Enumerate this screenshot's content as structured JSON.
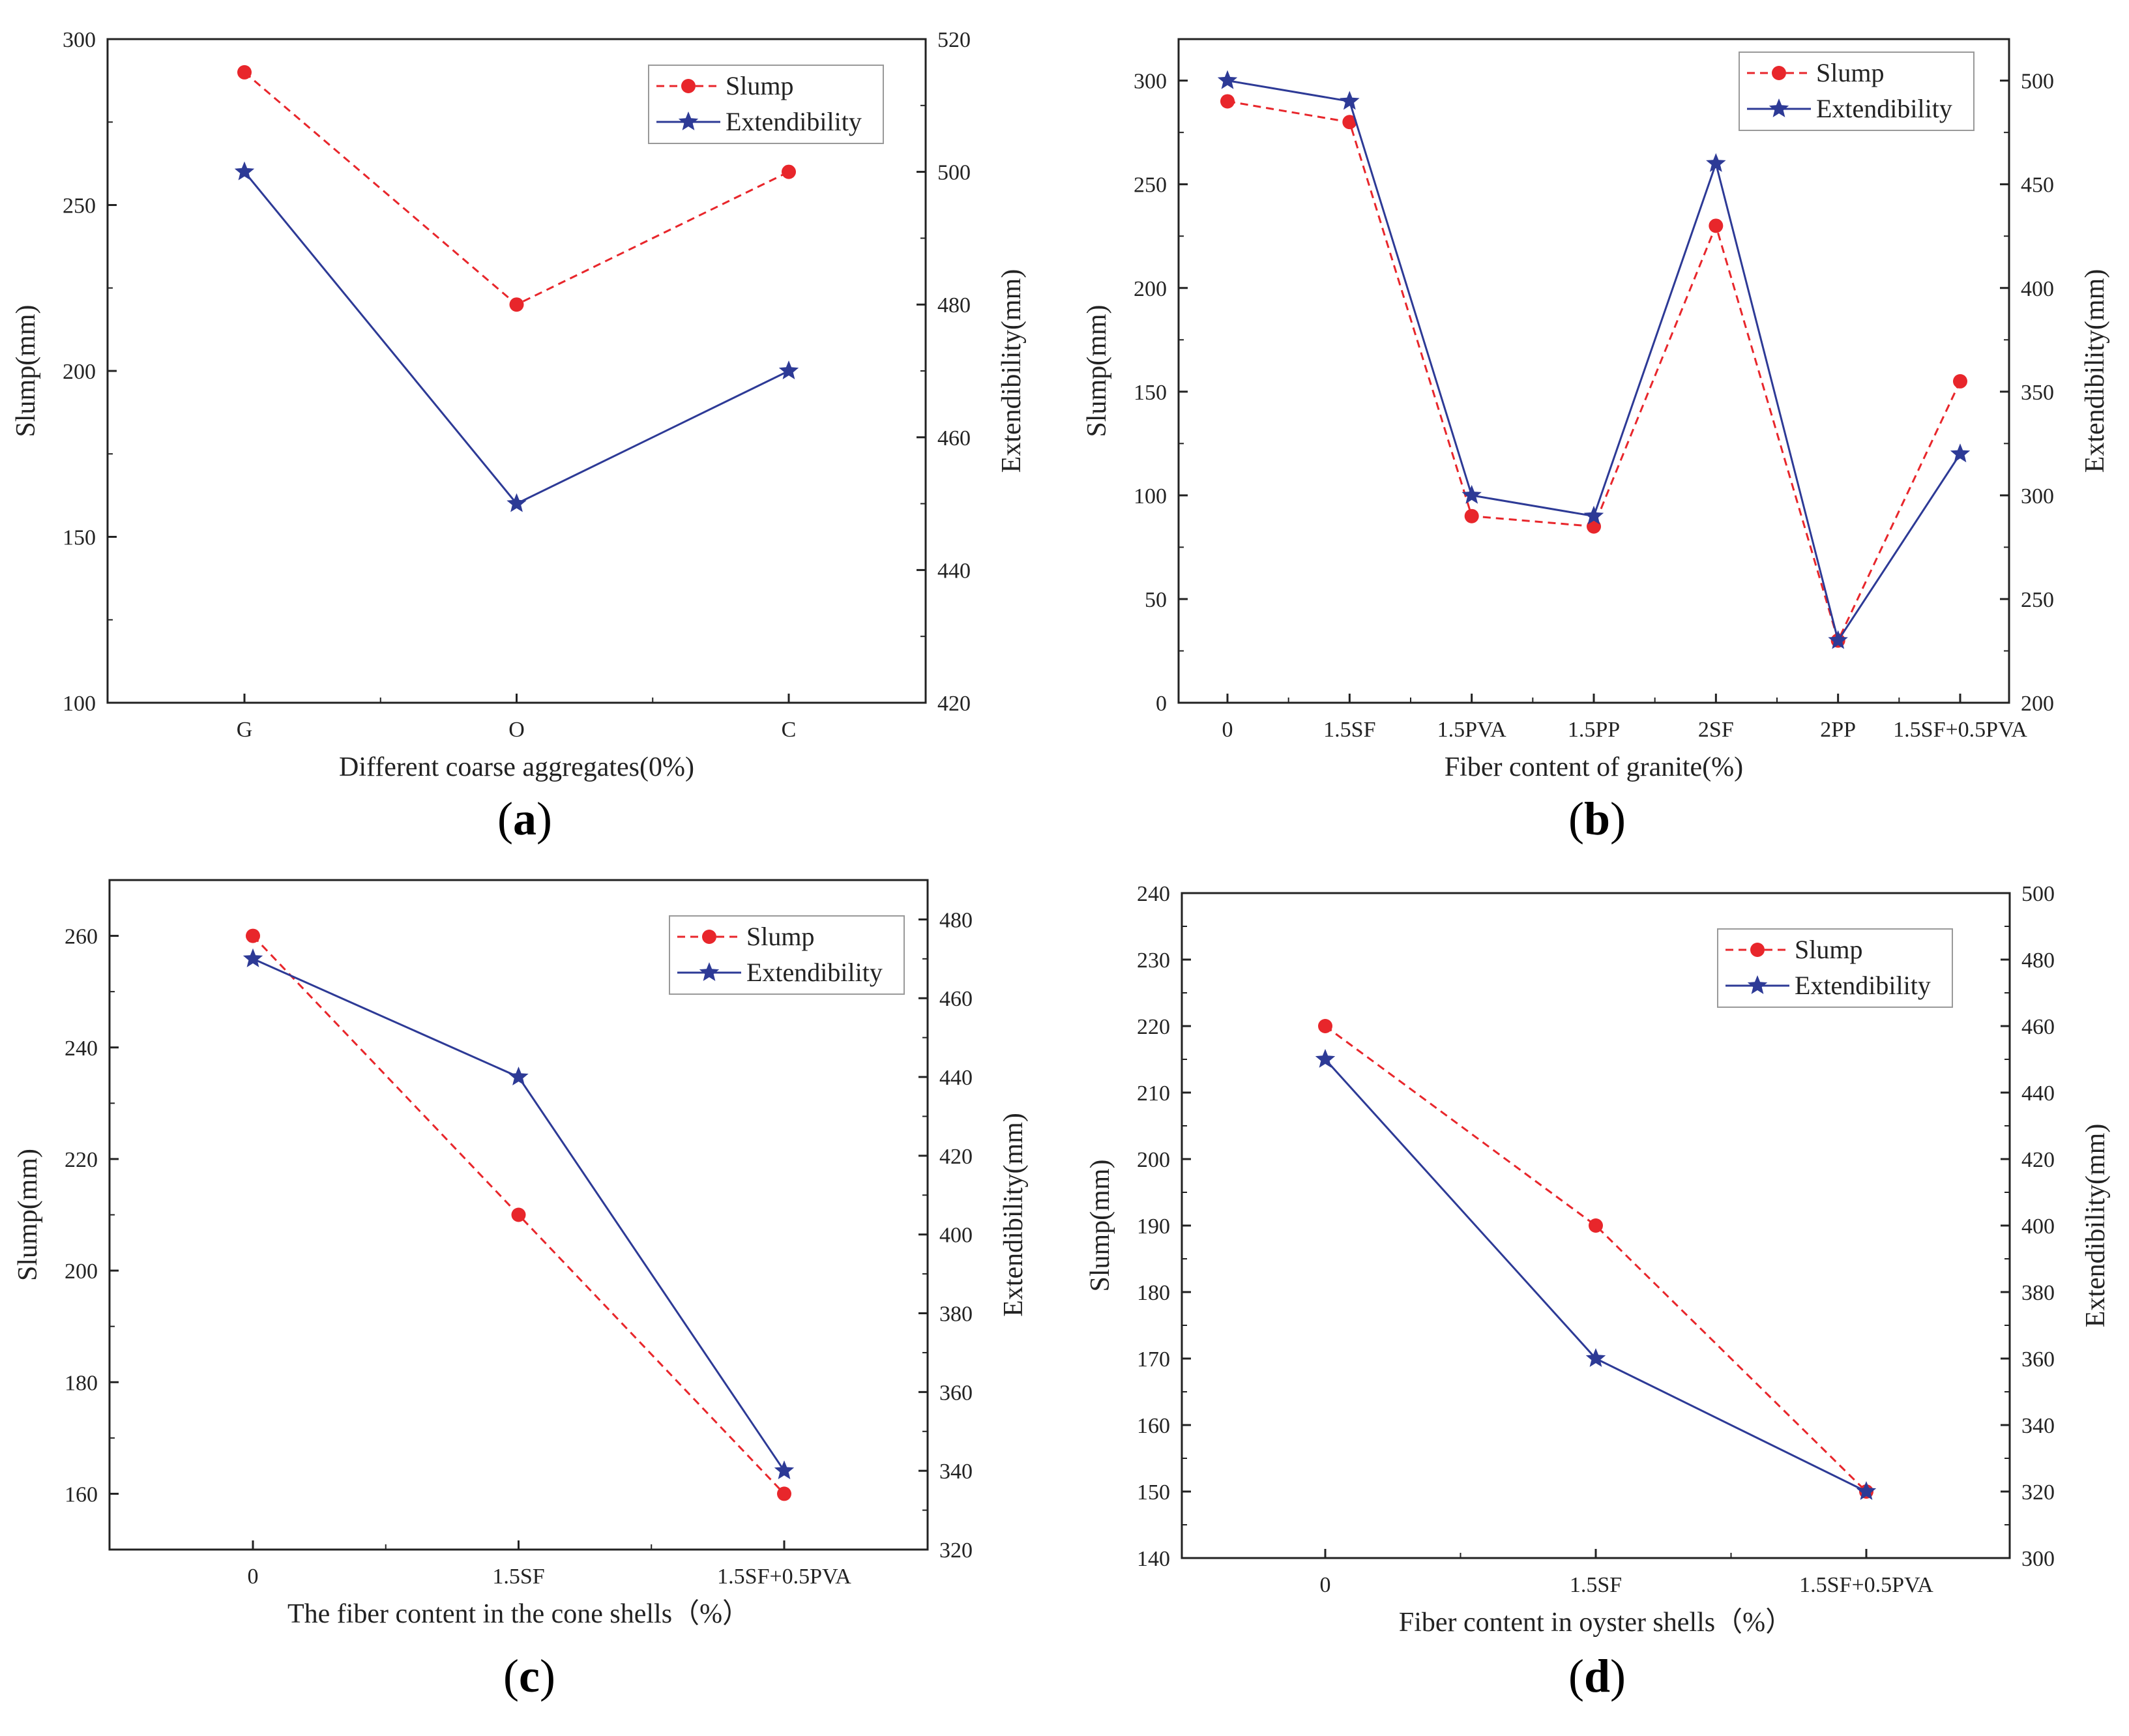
{
  "chart_data": [
    {
      "type": "line",
      "panel_label": "a",
      "categories": [
        "G",
        "O",
        "C"
      ],
      "xlabel": "Different coarse aggregates(0%)",
      "ylabel": "Slump(mm)",
      "y2label": "Extendibility(mm)",
      "ylim": [
        100,
        300
      ],
      "yticks": [
        100,
        150,
        200,
        250,
        300
      ],
      "y2lim": [
        420,
        520
      ],
      "y2ticks": [
        420,
        440,
        460,
        480,
        500,
        520
      ],
      "legend_position": "top-right",
      "series": [
        {
          "name": "Slump",
          "axis": "left",
          "color": "#e8262b",
          "style": "dashed",
          "marker": "circle",
          "values": [
            290,
            220,
            260
          ]
        },
        {
          "name": "Extendibility",
          "axis": "right",
          "color": "#2d3a96",
          "style": "solid",
          "marker": "star",
          "values": [
            500,
            450,
            470
          ]
        }
      ]
    },
    {
      "type": "line",
      "panel_label": "b",
      "categories": [
        "0",
        "1.5SF",
        "1.5PVA",
        "1.5PP",
        "2SF",
        "2PP",
        "1.5SF+0.5PVA"
      ],
      "xlabel": "Fiber content of granite(%)",
      "ylabel": "Slump(mm)",
      "y2label": "Extendibility(mm)",
      "ylim": [
        0,
        320
      ],
      "yticks": [
        0,
        50,
        100,
        150,
        200,
        250,
        300
      ],
      "y2lim": [
        200,
        520
      ],
      "y2ticks": [
        200,
        250,
        300,
        350,
        400,
        450,
        500
      ],
      "legend_position": "top-right",
      "series": [
        {
          "name": "Slump",
          "axis": "left",
          "color": "#e8262b",
          "style": "dashed",
          "marker": "circle",
          "values": [
            290,
            280,
            90,
            85,
            230,
            30,
            155
          ]
        },
        {
          "name": "Extendibility",
          "axis": "right",
          "color": "#2d3a96",
          "style": "solid",
          "marker": "star",
          "values": [
            500,
            490,
            300,
            290,
            460,
            230,
            320
          ]
        }
      ]
    },
    {
      "type": "line",
      "panel_label": "c",
      "categories": [
        "0",
        "1.5SF",
        "1.5SF+0.5PVA"
      ],
      "xlabel": "The fiber content in the cone shells（%）",
      "ylabel": "Slump(mm)",
      "y2label": "Extendibility(mm)",
      "ylim": [
        150,
        270
      ],
      "yticks": [
        160,
        180,
        200,
        220,
        240,
        260
      ],
      "y2lim": [
        320,
        490
      ],
      "y2ticks": [
        320,
        340,
        360,
        380,
        400,
        420,
        440,
        460,
        480
      ],
      "legend_position": "top-right",
      "series": [
        {
          "name": "Slump",
          "axis": "left",
          "color": "#e8262b",
          "style": "dashed",
          "marker": "circle",
          "values": [
            260,
            210,
            160
          ]
        },
        {
          "name": "Extendibility",
          "axis": "right",
          "color": "#2d3a96",
          "style": "solid",
          "marker": "star",
          "values": [
            470,
            440,
            340
          ]
        }
      ]
    },
    {
      "type": "line",
      "panel_label": "d",
      "categories": [
        "0",
        "1.5SF",
        "1.5SF+0.5PVA"
      ],
      "xlabel": "Fiber content in oyster shells（%）",
      "ylabel": "Slump(mm)",
      "y2label": "Extendibility(mm)",
      "ylim": [
        140,
        240
      ],
      "yticks": [
        140,
        150,
        160,
        170,
        180,
        190,
        200,
        210,
        220,
        230,
        240
      ],
      "y2lim": [
        300,
        500
      ],
      "y2ticks": [
        300,
        320,
        340,
        360,
        380,
        400,
        420,
        440,
        460,
        480,
        500
      ],
      "legend_position": "top-right",
      "series": [
        {
          "name": "Slump",
          "axis": "left",
          "color": "#e8262b",
          "style": "dashed",
          "marker": "circle",
          "values": [
            220,
            190,
            150
          ]
        },
        {
          "name": "Extendibility",
          "axis": "right",
          "color": "#2d3a96",
          "style": "solid",
          "marker": "star",
          "values": [
            450,
            360,
            320
          ]
        }
      ]
    }
  ]
}
